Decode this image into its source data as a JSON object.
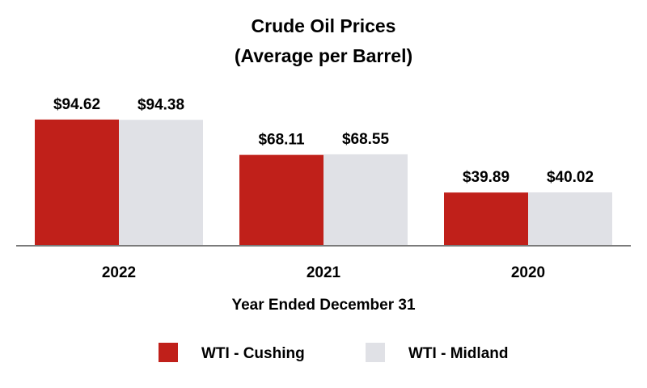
{
  "chart_data": {
    "type": "bar",
    "title": "Crude Oil Prices",
    "subtitle": "(Average per Barrel)",
    "xlabel": "Year Ended December 31",
    "ylabel": "",
    "categories": [
      "2022",
      "2021",
      "2020"
    ],
    "series": [
      {
        "name": "WTI - Cushing",
        "values": [
          94.62,
          68.11,
          39.89
        ],
        "labels": [
          "$94.62",
          "$68.11",
          "$39.89"
        ],
        "color": "#C0201A"
      },
      {
        "name": "WTI - Midland",
        "values": [
          94.38,
          68.55,
          40.02
        ],
        "labels": [
          "$94.38",
          "$68.55",
          "$40.02"
        ],
        "color": "#E0E1E6"
      }
    ],
    "ylim": [
      0,
      100
    ],
    "grid": false,
    "legend": "bottom"
  }
}
